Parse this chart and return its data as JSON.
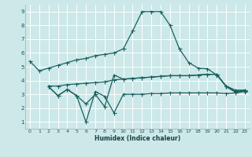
{
  "line1_x": [
    0,
    1,
    2,
    3,
    4,
    5,
    6,
    7,
    8,
    9,
    10,
    11,
    12,
    13,
    14,
    15,
    16,
    17,
    18,
    19,
    20,
    21,
    22,
    23
  ],
  "line1_y": [
    5.4,
    4.7,
    4.9,
    5.1,
    5.3,
    5.5,
    5.6,
    5.8,
    5.9,
    6.0,
    6.3,
    7.6,
    9.0,
    9.0,
    9.0,
    8.0,
    6.3,
    5.3,
    4.9,
    4.85,
    4.4,
    3.6,
    3.3,
    3.3
  ],
  "line2_x": [
    2,
    3,
    4,
    5,
    6,
    7,
    8,
    9,
    10,
    11,
    12,
    13,
    14,
    15,
    16,
    17,
    18,
    19,
    20,
    21,
    22,
    23
  ],
  "line2_y": [
    3.6,
    3.6,
    3.7,
    3.75,
    3.8,
    3.85,
    3.9,
    4.05,
    4.1,
    4.15,
    4.2,
    4.25,
    4.3,
    4.35,
    4.35,
    4.35,
    4.4,
    4.45,
    4.45,
    3.6,
    3.2,
    3.3
  ],
  "line3_x": [
    2,
    3,
    4,
    5,
    6,
    7,
    8,
    9,
    10,
    11,
    12,
    13,
    14,
    15,
    16,
    17,
    18,
    19,
    20,
    21,
    22,
    23
  ],
  "line3_y": [
    3.55,
    2.9,
    3.35,
    2.9,
    1.0,
    3.2,
    2.85,
    1.65,
    3.0,
    3.0,
    3.0,
    3.05,
    3.05,
    3.1,
    3.1,
    3.1,
    3.1,
    3.1,
    3.1,
    3.05,
    3.1,
    3.2
  ],
  "line4_x": [
    2,
    3,
    4,
    5,
    6,
    7,
    8,
    9,
    10,
    11,
    12,
    13,
    14,
    15,
    16,
    17,
    18,
    19,
    20,
    21,
    22,
    23
  ],
  "line4_y": [
    3.55,
    2.9,
    3.35,
    2.9,
    2.3,
    3.0,
    2.1,
    4.4,
    4.1,
    4.15,
    4.2,
    4.25,
    4.3,
    4.35,
    4.35,
    4.35,
    4.4,
    4.45,
    4.45,
    3.55,
    3.15,
    3.25
  ],
  "bg_color": "#cce8e8",
  "line_color": "#1a6060",
  "grid_color": "#ffffff",
  "xlabel": "Humidex (Indice chaleur)",
  "ylim": [
    0.5,
    9.5
  ],
  "xlim": [
    -0.5,
    23.5
  ],
  "yticks": [
    1,
    2,
    3,
    4,
    5,
    6,
    7,
    8,
    9
  ],
  "xticks": [
    0,
    1,
    2,
    3,
    4,
    5,
    6,
    7,
    8,
    9,
    10,
    11,
    12,
    13,
    14,
    15,
    16,
    17,
    18,
    19,
    20,
    21,
    22,
    23
  ]
}
